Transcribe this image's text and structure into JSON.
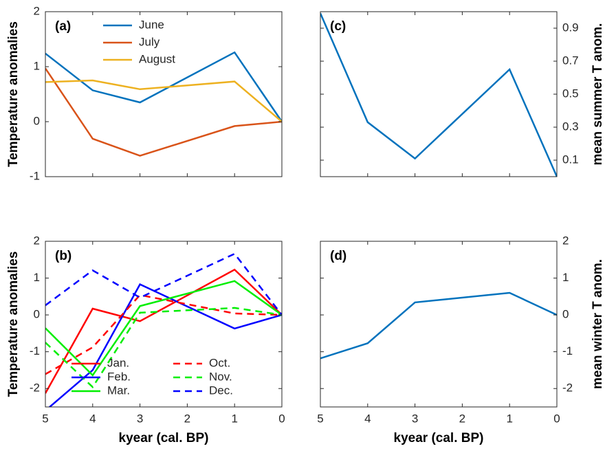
{
  "chart_data": [
    {
      "type": "line",
      "panel_label": "(a)",
      "ylabel": "Temperature anomalies",
      "y_axis_side": "left",
      "show_xtick_labels": false,
      "legend": "upper left",
      "legend_columns": 1,
      "x": [
        5,
        4,
        3,
        1,
        0
      ],
      "xlim": [
        5,
        0
      ],
      "xticks": [
        5,
        4,
        3,
        2,
        1,
        0
      ],
      "ylim": [
        -1,
        2
      ],
      "yticks": [
        -1,
        0,
        1,
        2
      ],
      "series": [
        {
          "name": "June",
          "color": "#0072bd",
          "dashed": false,
          "values": [
            1.24,
            0.57,
            0.35,
            1.26,
            0
          ]
        },
        {
          "name": "July",
          "color": "#d95319",
          "dashed": false,
          "values": [
            0.97,
            -0.31,
            -0.62,
            -0.08,
            0
          ]
        },
        {
          "name": "August",
          "color": "#edb120",
          "dashed": false,
          "values": [
            0.72,
            0.75,
            0.59,
            0.73,
            0
          ]
        }
      ]
    },
    {
      "type": "line",
      "panel_label": "(c)",
      "ylabel": "mean summer T anom.",
      "y_axis_side": "right",
      "show_xtick_labels": false,
      "x": [
        5,
        4,
        3,
        1,
        0
      ],
      "xlim": [
        5,
        0
      ],
      "xticks": [
        5,
        4,
        3,
        2,
        1,
        0
      ],
      "ylim": [
        0,
        1
      ],
      "yticks": [
        0.1,
        0.3,
        0.5,
        0.7,
        0.9
      ],
      "series": [
        {
          "color": "#0072bd",
          "dashed": false,
          "values": [
            0.99,
            0.33,
            0.11,
            0.65,
            0
          ]
        }
      ]
    },
    {
      "type": "line",
      "panel_label": "(b)",
      "ylabel": "Temperature anomalies",
      "xlabel": "kyear (cal. BP)",
      "y_axis_side": "left",
      "show_xtick_labels": true,
      "legend": "lower right",
      "legend_columns": 2,
      "x": [
        5,
        4,
        3,
        1,
        0
      ],
      "xlim": [
        5,
        0
      ],
      "xticks": [
        5,
        4,
        3,
        2,
        1,
        0
      ],
      "ylim": [
        -2.5,
        2
      ],
      "yticks": [
        -2,
        -1,
        0,
        1,
        2
      ],
      "series": [
        {
          "name": "Jan.",
          "color": "#ff0000",
          "dashed": false,
          "values": [
            -2.13,
            0.17,
            -0.17,
            1.23,
            0
          ]
        },
        {
          "name": "Feb.",
          "color": "#0000ff",
          "dashed": false,
          "values": [
            -2.6,
            -1.5,
            0.83,
            -0.37,
            0
          ]
        },
        {
          "name": "Mar.",
          "color": "#00ee00",
          "dashed": false,
          "values": [
            -0.36,
            -1.64,
            0.24,
            0.92,
            0
          ]
        },
        {
          "name": "Oct.",
          "color": "#ff0000",
          "dashed": true,
          "values": [
            -1.61,
            -0.88,
            0.54,
            0.04,
            0
          ]
        },
        {
          "name": "Nov.",
          "color": "#00ee00",
          "dashed": true,
          "values": [
            -0.75,
            -1.96,
            0.06,
            0.19,
            0
          ]
        },
        {
          "name": "Dec.",
          "color": "#0000ff",
          "dashed": true,
          "values": [
            0.26,
            1.21,
            0.47,
            1.66,
            0
          ]
        }
      ]
    },
    {
      "type": "line",
      "panel_label": "(d)",
      "ylabel": "mean winter T anom.",
      "xlabel": "kyear (cal. BP)",
      "y_axis_side": "right",
      "show_xtick_labels": true,
      "x": [
        5,
        4,
        3,
        1,
        0
      ],
      "xlim": [
        5,
        0
      ],
      "xticks": [
        5,
        4,
        3,
        2,
        1,
        0
      ],
      "ylim": [
        -2.5,
        2
      ],
      "yticks": [
        -2,
        -1,
        0,
        1,
        2
      ],
      "series": [
        {
          "color": "#0072bd",
          "dashed": false,
          "values": [
            -1.18,
            -0.77,
            0.34,
            0.6,
            0
          ]
        }
      ]
    }
  ]
}
